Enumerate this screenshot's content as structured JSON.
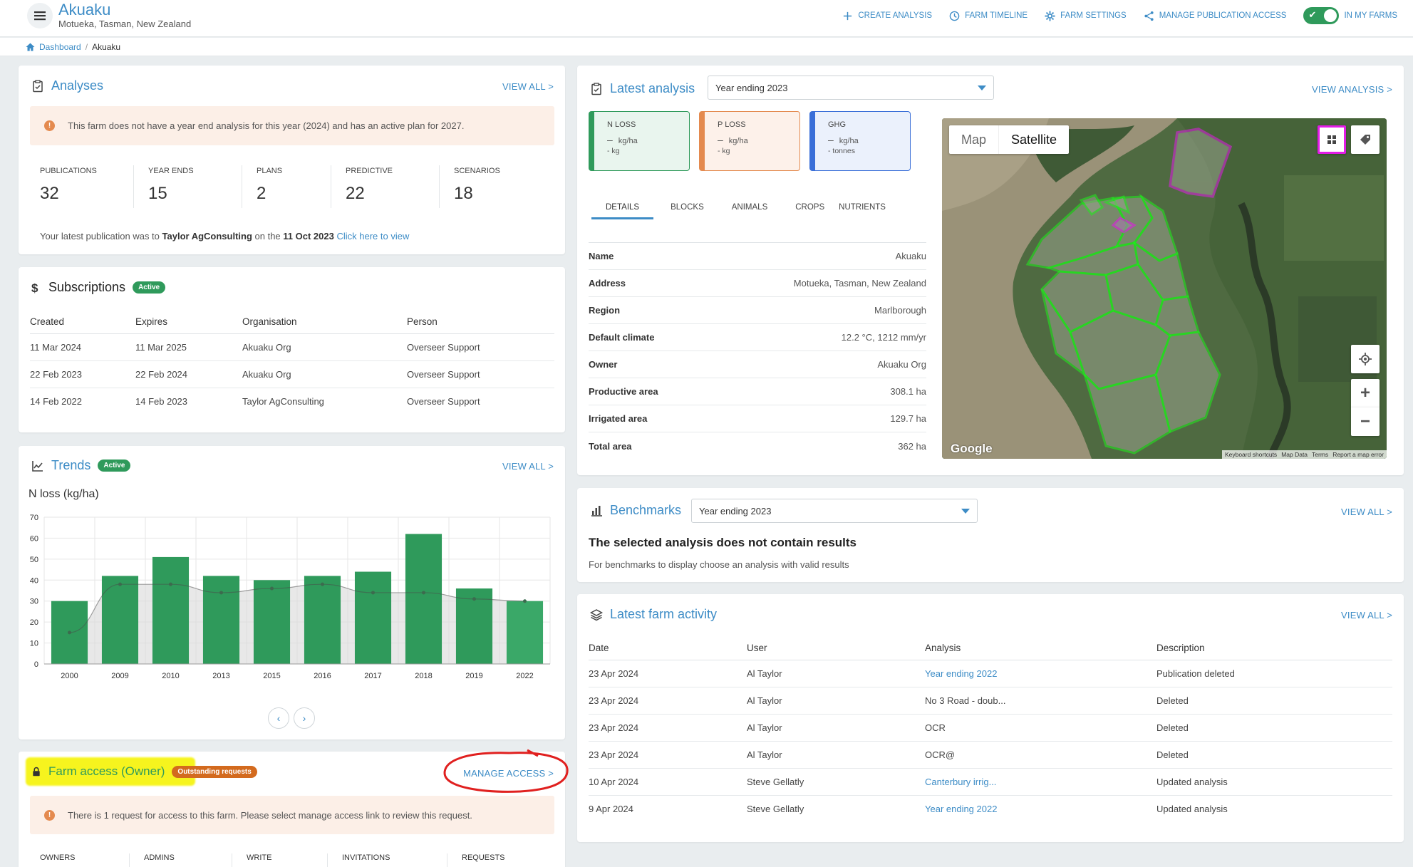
{
  "header": {
    "farm_name": "Akuaku",
    "farm_location": "Motueka, Tasman, New Zealand",
    "actions": {
      "create_analysis": "CREATE ANALYSIS",
      "farm_timeline": "FARM TIMELINE",
      "farm_settings": "FARM SETTINGS",
      "manage_publication_access": "MANAGE PUBLICATION ACCESS",
      "in_my_farms": "IN MY FARMS"
    },
    "in_my_farms_enabled": true
  },
  "breadcrumb": {
    "dashboard": "Dashboard",
    "current": "Akuaku"
  },
  "analyses": {
    "title": "Analyses",
    "view_all": "VIEW ALL  >",
    "alert": "This farm does not have a year end analysis for this year (2024) and has an active plan for 2027.",
    "stats": [
      {
        "label": "PUBLICATIONS",
        "value": "32"
      },
      {
        "label": "YEAR ENDS",
        "value": "15"
      },
      {
        "label": "PLANS",
        "value": "2"
      },
      {
        "label": "PREDICTIVE",
        "value": "22"
      },
      {
        "label": "SCENARIOS",
        "value": "18"
      }
    ],
    "latest_pub_prefix": "Your latest publication was to ",
    "latest_pub_org": "Taylor AgConsulting",
    "latest_pub_mid": " on the ",
    "latest_pub_date": "11 Oct 2023",
    "latest_pub_link": "Click here to view"
  },
  "subscriptions": {
    "title": "Subscriptions",
    "badge": "Active",
    "headers": [
      "Created",
      "Expires",
      "Organisation",
      "Person"
    ],
    "rows": [
      [
        "11 Mar 2024",
        "11 Mar 2025",
        "Akuaku Org",
        "Overseer Support"
      ],
      [
        "22 Feb 2023",
        "22 Feb 2024",
        "Akuaku Org",
        "Overseer Support"
      ],
      [
        "14 Feb 2022",
        "14 Feb 2023",
        "Taylor AgConsulting",
        "Overseer Support"
      ]
    ]
  },
  "trends": {
    "title": "Trends",
    "badge": "Active",
    "view_all": "VIEW ALL  >",
    "chart_title": "N loss (kg/ha)"
  },
  "chart_data": {
    "type": "bar",
    "title": "N loss (kg/ha)",
    "categories": [
      "2000",
      "2009",
      "2010",
      "2013",
      "2015",
      "2016",
      "2017",
      "2018",
      "2019",
      "2022"
    ],
    "values": [
      30,
      42,
      51,
      42,
      40,
      42,
      44,
      62,
      36,
      30
    ],
    "trend_values": [
      15,
      38,
      38,
      34,
      36,
      38,
      34,
      34,
      31,
      30
    ],
    "ylim": [
      0,
      70
    ],
    "yticks": [
      0,
      10,
      20,
      30,
      40,
      50,
      60,
      70
    ],
    "grid": true,
    "colors": {
      "bar": "#2f9a5b",
      "bar_last": "#3aa868",
      "trend": "#4a4a4a",
      "trend_fill": "#d8d8d8"
    }
  },
  "farm_access": {
    "title": "Farm access (Owner)",
    "badge": "Outstanding requests",
    "manage": "MANAGE ACCESS  >",
    "alert": "There is 1 request for access to this farm. Please select manage access link to review this request.",
    "columns": [
      "OWNERS",
      "ADMINS",
      "WRITE",
      "INVITATIONS",
      "REQUESTS"
    ]
  },
  "latest_analysis": {
    "title": "Latest analysis",
    "selected": "Year ending 2023",
    "view_analysis": "VIEW ANALYSIS  >",
    "metrics": [
      {
        "label": "N LOSS",
        "line1": "kg/ha",
        "line2": "- kg",
        "color": "#2f9a5b",
        "bg": "#e9f5ee"
      },
      {
        "label": "P LOSS",
        "line1": "kg/ha",
        "line2": "- kg",
        "color": "#e48a4f",
        "bg": "#fdf1ea"
      },
      {
        "label": "GHG",
        "line1": "kg/ha",
        "line2": "- tonnes",
        "color": "#3a6fd8",
        "bg": "#ebf1fc"
      }
    ],
    "tabs": [
      "DETAILS",
      "BLOCKS",
      "ANIMALS",
      "CROPS",
      "NUTRIENTS"
    ],
    "details": [
      {
        "k": "Name",
        "v": "Akuaku"
      },
      {
        "k": "Address",
        "v": "Motueka, Tasman, New Zealand"
      },
      {
        "k": "Region",
        "v": "Marlborough"
      },
      {
        "k": "Default climate",
        "v": "12.2 °C, 1212 mm/yr"
      },
      {
        "k": "Owner",
        "v": "Akuaku Org"
      },
      {
        "k": "Productive area",
        "v": "308.1 ha"
      },
      {
        "k": "Irrigated area",
        "v": "129.7 ha"
      },
      {
        "k": "Total area",
        "v": "362 ha"
      }
    ],
    "map": {
      "tab_map": "Map",
      "tab_satellite": "Satellite",
      "google": "Google",
      "footer": [
        "Keyboard shortcuts",
        "Map Data",
        "Terms",
        "Report a map error"
      ]
    }
  },
  "benchmarks": {
    "title": "Benchmarks",
    "selected": "Year ending 2023",
    "view_all": "VIEW ALL  >",
    "message": "The selected analysis does not contain results",
    "sub": "For benchmarks to display choose an analysis with valid results"
  },
  "activity": {
    "title": "Latest farm activity",
    "view_all": "VIEW ALL  >",
    "headers": [
      "Date",
      "User",
      "Analysis",
      "Description"
    ],
    "rows": [
      {
        "date": "23 Apr 2024",
        "user": "Al Taylor",
        "analysis": "Year ending 2022",
        "link": true,
        "desc": "Publication deleted"
      },
      {
        "date": "23 Apr 2024",
        "user": "Al Taylor",
        "analysis": "No 3 Road - doub...",
        "link": false,
        "desc": "Deleted"
      },
      {
        "date": "23 Apr 2024",
        "user": "Al Taylor",
        "analysis": "OCR",
        "link": false,
        "desc": "Deleted"
      },
      {
        "date": "23 Apr 2024",
        "user": "Al Taylor",
        "analysis": "OCR@",
        "link": false,
        "desc": "Deleted"
      },
      {
        "date": "10 Apr 2024",
        "user": "Steve Gellatly",
        "analysis": "Canterbury irrig...",
        "link": true,
        "desc": "Updated analysis"
      },
      {
        "date": "9 Apr 2024",
        "user": "Steve Gellatly",
        "analysis": "Year ending 2022",
        "link": true,
        "desc": "Updated analysis"
      }
    ]
  }
}
